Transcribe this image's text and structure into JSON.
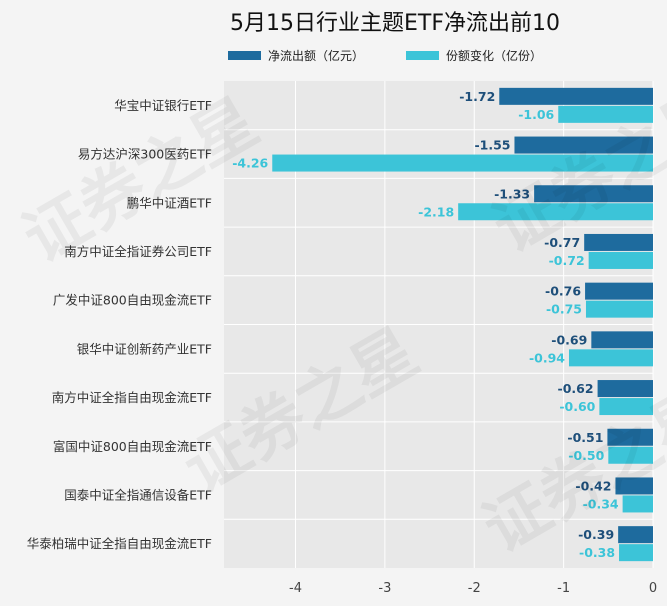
{
  "watermark_text": "证券之星",
  "colors": {
    "background": "#f4f4f4",
    "plot_bg": "#e8e8e8",
    "grid": "#ffffff",
    "net_outflow": "#1e6b9e",
    "share_change": "#3cc4d8",
    "label_dark": "#1e4f7a",
    "label_light": "#3cc4d8"
  },
  "chart_data": {
    "type": "bar",
    "orientation": "horizontal",
    "title": "5月15日行业主题ETF净流出前10",
    "categories": [
      "华宝中证银行ETF",
      "易方达沪深300医药ETF",
      "鹏华中证酒ETF",
      "南方中证全指证券公司ETF",
      "广发中证800自由现金流ETF",
      "银华中证创新药产业ETF",
      "南方中证全指自由现金流ETF",
      "富国中证800自由现金流ETF",
      "国泰中证全指通信设备ETF",
      "华泰柏瑞中证全指自由现金流ETF"
    ],
    "series": [
      {
        "name": "净流出额（亿元）",
        "values": [
          -1.72,
          -1.55,
          -1.33,
          -0.77,
          -0.76,
          -0.69,
          -0.62,
          -0.51,
          -0.42,
          -0.39
        ]
      },
      {
        "name": "份额变化（亿份）",
        "values": [
          -1.06,
          -4.26,
          -2.18,
          -0.72,
          -0.75,
          -0.94,
          -0.6,
          -0.5,
          -0.34,
          -0.38
        ]
      }
    ],
    "xlim": [
      -4.8,
      0
    ],
    "xticks": [
      -4,
      -3,
      -2,
      -1,
      0
    ],
    "grid": true,
    "legend_position": "top"
  }
}
